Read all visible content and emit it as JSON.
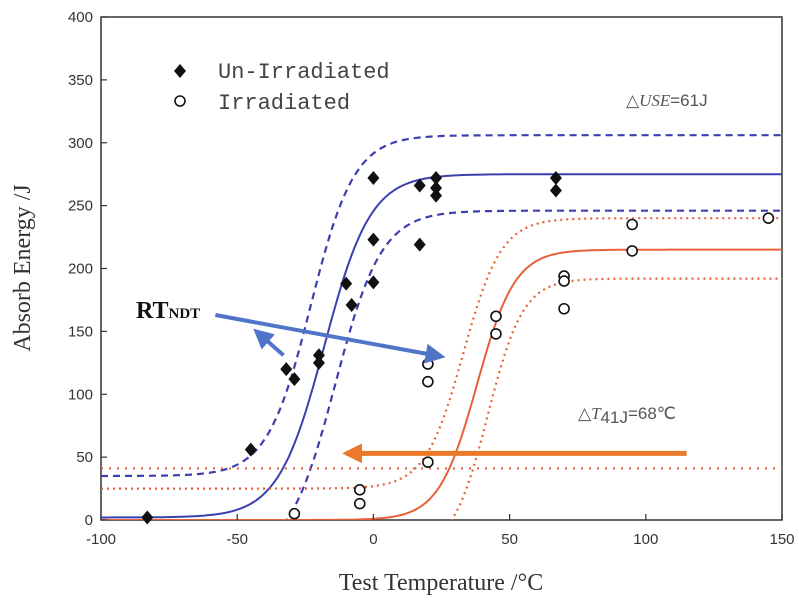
{
  "chart_data": {
    "type": "scatter",
    "xlabel": "Test Temperature /°C",
    "ylabel": "Absorb Energy /J",
    "xlim": [
      -100,
      150
    ],
    "ylim": [
      0,
      400
    ],
    "x_ticks": [
      "-100",
      "-50",
      "0",
      "50",
      "100",
      "150"
    ],
    "y_ticks": [
      "0",
      "50",
      "100",
      "150",
      "200",
      "250",
      "300",
      "350",
      "400"
    ],
    "legend": {
      "placement": "top-left",
      "entries": [
        {
          "label": "Un-Irradiated",
          "marker": "filled-diamond"
        },
        {
          "label": "Irradiated",
          "marker": "open-circle"
        }
      ]
    },
    "annotations": {
      "delta_use": {
        "prefix": "△",
        "italic": "USE",
        "suffix": "=61J"
      },
      "delta_t41j": {
        "prefix": "△",
        "italic": "T",
        "sub": "41J",
        "suffix": "=68℃"
      },
      "rt_ndt": {
        "main": "RT",
        "sub": "NDT"
      }
    },
    "colors": {
      "unirradiated_fit": "#3b3fb0",
      "irradiated_fit": "#e8603a",
      "rt_arrow": "#4f74c8",
      "shift_arrow": "#ea7a2a",
      "markers": "#111111"
    },
    "series": [
      {
        "name": "Un-Irradiated",
        "marker": "filled-diamond",
        "points": [
          [
            -83,
            2
          ],
          [
            -45,
            56
          ],
          [
            -32,
            120
          ],
          [
            -29,
            112
          ],
          [
            -20,
            125
          ],
          [
            -20,
            131
          ],
          [
            -10,
            188
          ],
          [
            -8,
            171
          ],
          [
            0,
            272
          ],
          [
            0,
            223
          ],
          [
            0,
            189
          ],
          [
            17,
            266
          ],
          [
            17,
            219
          ],
          [
            23,
            272
          ],
          [
            23,
            264
          ],
          [
            23,
            258
          ],
          [
            67,
            272
          ],
          [
            67,
            262
          ]
        ]
      },
      {
        "name": "Irradiated",
        "marker": "open-circle",
        "points": [
          [
            -29,
            5
          ],
          [
            -5,
            24
          ],
          [
            -5,
            13
          ],
          [
            20,
            124
          ],
          [
            20,
            110
          ],
          [
            20,
            46
          ],
          [
            45,
            162
          ],
          [
            45,
            148
          ],
          [
            70,
            194
          ],
          [
            70,
            190
          ],
          [
            70,
            168
          ],
          [
            95,
            235
          ],
          [
            95,
            214
          ],
          [
            145,
            240
          ]
        ]
      }
    ],
    "fits": [
      {
        "series": "Un-Irradiated",
        "style": "solid",
        "color": "#3b3fb0",
        "lower": 2,
        "upper": 275,
        "t0": -18,
        "c": 17
      },
      {
        "series": "Un-Irradiated",
        "style": "dashed",
        "color": "#3b3fb0",
        "lower": 35,
        "upper": 306,
        "t0": -23,
        "c": 16
      },
      {
        "series": "Un-Irradiated",
        "style": "dashed",
        "color": "#3b3fb0",
        "lower": -30,
        "upper": 246,
        "t0": -14,
        "c": 17
      },
      {
        "series": "Irradiated",
        "style": "solid",
        "color": "#e8603a",
        "lower": 0,
        "upper": 215,
        "t0": 38,
        "c": 14
      },
      {
        "series": "Irradiated",
        "style": "dotted",
        "color": "#e8603a",
        "lower": 25,
        "upper": 240,
        "t0": 33,
        "c": 14
      },
      {
        "series": "Irradiated",
        "style": "dotted",
        "color": "#e8603a",
        "lower": -25,
        "upper": 192,
        "t0": 42,
        "c": 13
      }
    ],
    "reference_line": {
      "y": 41,
      "style": "dotted",
      "color": "#e8603a"
    },
    "arrows": [
      {
        "name": "rt-ndt-arrow-upper",
        "from": [
          -58,
          163
        ],
        "to": [
          25,
          130
        ],
        "color": "#4f74c8"
      },
      {
        "name": "rt-ndt-arrow-lower",
        "from": [
          -33,
          131
        ],
        "to": [
          -43,
          150
        ],
        "color": "#4f74c8"
      },
      {
        "name": "shift-arrow",
        "from": [
          115,
          53
        ],
        "to": [
          -10,
          53
        ],
        "color": "#ea7a2a"
      }
    ]
  }
}
